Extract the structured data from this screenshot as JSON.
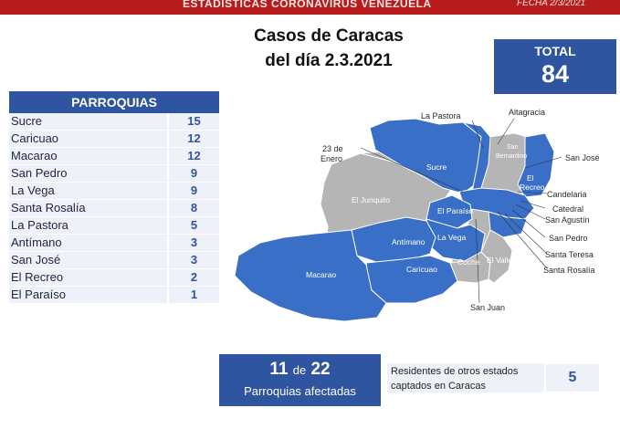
{
  "banner": {
    "title": "ESTADÍSTICAS CORONAVIRUS VENEZUELA",
    "date": "FECHA 2/3/2021"
  },
  "title": {
    "line1": "Casos de Caracas",
    "line2": "del día 2.3.2021"
  },
  "total": {
    "label": "TOTAL",
    "value": "84"
  },
  "table": {
    "header": "PARROQUIAS",
    "rows": [
      {
        "name": "Sucre",
        "value": "15"
      },
      {
        "name": "Caricuao",
        "value": "12"
      },
      {
        "name": "Macarao",
        "value": "12"
      },
      {
        "name": "San Pedro",
        "value": "9"
      },
      {
        "name": "La Vega",
        "value": "9"
      },
      {
        "name": "Santa Rosalía",
        "value": "8"
      },
      {
        "name": "La Pastora",
        "value": "5"
      },
      {
        "name": "Antímano",
        "value": "3"
      },
      {
        "name": "San José",
        "value": "3"
      },
      {
        "name": "El Recreo",
        "value": "2"
      },
      {
        "name": "El Paraíso",
        "value": "1"
      }
    ]
  },
  "map": {
    "colors": {
      "affected": "#3a6fc8",
      "unaffected": "#b5b5b5"
    },
    "outer_labels": {
      "la_pastora": "La Pastora",
      "altagracia": "Altagracia",
      "enero_1": "23 de",
      "enero_2": "Enero",
      "san_jose": "San José",
      "candelaria": "Candelaria",
      "catedral": "Catedral",
      "san_agustin": "San Agustín",
      "san_pedro": "San Pedro",
      "santa_teresa": "Santa Teresa",
      "santa_rosalia": "Santa Rosalía",
      "san_juan": "San Juan"
    },
    "inner_labels": {
      "sucre": "Sucre",
      "el_junquito": "El Junquito",
      "el_paraiso": "El Paraíso",
      "la_vega": "La Vega",
      "antimano": "Antímano",
      "macarao": "Macarao",
      "caricuao": "Caricuao",
      "coche": "Coche",
      "el_valle": "El Valle",
      "san_bernardino_1": "San",
      "san_bernardino_2": "Bernardino",
      "el_recreo_1": "El",
      "el_recreo_2": "Recreo"
    }
  },
  "affected": {
    "count": "11",
    "of": "de",
    "total": "22",
    "label": "Parroquias afectadas"
  },
  "residents": {
    "text_line1": "Residentes de otros estados",
    "text_line2": "captados en Caracas",
    "value": "5"
  }
}
